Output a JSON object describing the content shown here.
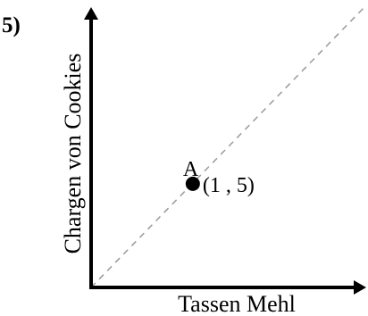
{
  "problem_label": "5)",
  "chart_data": {
    "type": "scatter",
    "title": "",
    "xlabel": "Tassen Mehl",
    "ylabel": "Chargen von Cookies",
    "xlim": [
      0,
      2.6
    ],
    "ylim": [
      0,
      13
    ],
    "grid": false,
    "axis_arrows": true,
    "points": [
      {
        "label": "A",
        "x": 1,
        "y": 5,
        "annotation": "(1 , 5)"
      }
    ],
    "reference_lines": [
      {
        "style": "dashed",
        "color": "#999999",
        "through_origin": true,
        "slope": 5
      }
    ]
  }
}
